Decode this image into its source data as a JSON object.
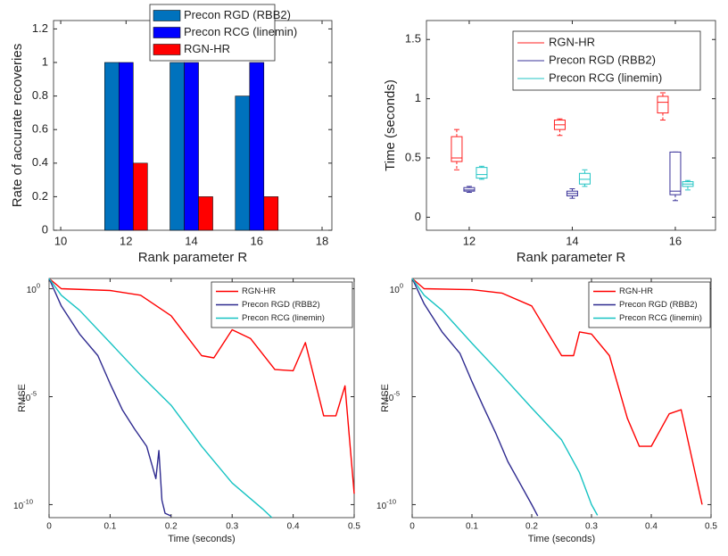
{
  "chart_data": [
    {
      "type": "bar",
      "xlabel": "Rank parameter R",
      "ylabel": "Rate of accurate recoveries",
      "x": [
        12,
        14,
        16
      ],
      "xlim": [
        9.78,
        18.3
      ],
      "xticks": [
        10,
        12,
        14,
        16,
        18
      ],
      "ylim": [
        0,
        1.25
      ],
      "yticks": [
        0,
        0.2,
        0.4,
        0.6,
        0.8,
        1,
        1.2
      ],
      "legend": "top",
      "series": [
        {
          "name": "Precon RGD (RBB2)",
          "color": "#0072bd",
          "values": [
            1,
            1,
            0.8
          ]
        },
        {
          "name": "Precon RCG (linemin)",
          "color": "#0000ff",
          "values": [
            1,
            1,
            1
          ]
        },
        {
          "name": "RGN-HR",
          "color": "#ff0000",
          "values": [
            0.4,
            0.2,
            0.2
          ]
        }
      ]
    },
    {
      "type": "box",
      "xlabel": "Rank parameter R",
      "ylabel": "Time (seconds)",
      "x": [
        12,
        14,
        16
      ],
      "xlim": [
        11.17,
        16.78
      ],
      "xticks": [
        12,
        14,
        16
      ],
      "ylim": [
        -0.11,
        1.66
      ],
      "yticks": [
        0,
        0.5,
        1,
        1.5
      ],
      "legend": "top right",
      "series": [
        {
          "name": "RGN-HR",
          "color": "#ff2020",
          "min": [
            0.4,
            0.69,
            0.82
          ],
          "q1": [
            0.47,
            0.74,
            0.88
          ],
          "median": [
            0.5,
            0.78,
            0.97
          ],
          "q3": [
            0.68,
            0.82,
            1.02
          ],
          "max": [
            0.74,
            0.83,
            1.05
          ]
        },
        {
          "name": "Precon RGD (RBB2)",
          "color": "#3a3399",
          "min": [
            0.21,
            0.16,
            0.14
          ],
          "q1": [
            0.22,
            0.18,
            0.19
          ],
          "median": [
            0.23,
            0.2,
            0.22
          ],
          "q3": [
            0.25,
            0.22,
            0.55
          ],
          "max": [
            0.26,
            0.24,
            0.55
          ]
        },
        {
          "name": "Precon RCG (linemin)",
          "color": "#22c4c4",
          "min": [
            0.32,
            0.26,
            0.23
          ],
          "q1": [
            0.33,
            0.28,
            0.26
          ],
          "median": [
            0.36,
            0.32,
            0.28
          ],
          "q3": [
            0.42,
            0.37,
            0.3
          ],
          "max": [
            0.43,
            0.4,
            0.31
          ]
        }
      ]
    },
    {
      "type": "line",
      "xlabel": "Time (seconds)",
      "ylabel": "RMSE",
      "log_y": true,
      "xlim": [
        0,
        0.5
      ],
      "xticks": [
        0,
        0.1,
        0.2,
        0.3,
        0.4,
        0.5
      ],
      "ylim": [
        3,
        2.5e-11
      ],
      "yticks": [
        {
          "value": 1,
          "label": "10",
          "exponent": "0"
        },
        {
          "value": 1e-05,
          "label": "10",
          "exponent": "-5"
        },
        {
          "value": 1e-10,
          "label": "10",
          "exponent": "-10"
        }
      ],
      "legend": "top right",
      "series": [
        {
          "name": "RGN-HR",
          "color": "#ff0000",
          "x": [
            0,
            0.02,
            0.1,
            0.15,
            0.2,
            0.25,
            0.27,
            0.3,
            0.33,
            0.37,
            0.4,
            0.42,
            0.45,
            0.47,
            0.485,
            0.5
          ],
          "values": [
            3,
            1,
            0.83,
            0.5,
            0.056,
            0.0008,
            0.00063,
            0.0126,
            0.005,
            0.00018,
            0.00016,
            0.0032,
            1.3e-06,
            1.3e-06,
            3.2e-05,
            3.2e-10
          ]
        },
        {
          "name": "Precon RGD (RBB2)",
          "color": "#2e2a8f",
          "x": [
            0,
            0.02,
            0.05,
            0.08,
            0.1,
            0.12,
            0.14,
            0.16,
            0.175,
            0.18,
            0.185,
            0.19,
            0.2
          ],
          "values": [
            3,
            0.16,
            0.008,
            0.0008,
            4e-05,
            2.5e-06,
            3.2e-07,
            5e-08,
            1.6e-09,
            3.2e-08,
            1.6e-10,
            4e-11,
            3e-11
          ]
        },
        {
          "name": "Precon RCG (linemin)",
          "color": "#17c3c3",
          "x": [
            0,
            0.02,
            0.05,
            0.1,
            0.15,
            0.2,
            0.25,
            0.3,
            0.35,
            0.365
          ],
          "values": [
            3,
            0.5,
            0.1,
            0.0032,
            0.0001,
            4e-06,
            5e-08,
            1e-09,
            6.3e-11,
            2.5e-11
          ]
        }
      ]
    },
    {
      "type": "line",
      "xlabel": "Time (seconds)",
      "ylabel": "RMSE",
      "log_y": true,
      "xlim": [
        0,
        0.5
      ],
      "xticks": [
        0,
        0.1,
        0.2,
        0.3,
        0.4,
        0.5
      ],
      "ylim": [
        3,
        2.5e-11
      ],
      "yticks": [
        {
          "value": 1,
          "label": "10",
          "exponent": "0"
        },
        {
          "value": 1e-05,
          "label": "10",
          "exponent": "-5"
        },
        {
          "value": 1e-10,
          "label": "10",
          "exponent": "-10"
        }
      ],
      "legend": "top right",
      "series": [
        {
          "name": "RGN-HR",
          "color": "#ff0000",
          "x": [
            0,
            0.02,
            0.1,
            0.15,
            0.2,
            0.25,
            0.27,
            0.28,
            0.3,
            0.33,
            0.36,
            0.38,
            0.4,
            0.43,
            0.45,
            0.485
          ],
          "values": [
            3,
            1,
            0.9,
            0.63,
            0.16,
            0.0008,
            0.0008,
            0.01,
            0.008,
            0.0008,
            1e-06,
            5e-08,
            5e-08,
            1.6e-06,
            2.5e-06,
            1e-10
          ]
        },
        {
          "name": "Precon RGD (RBB2)",
          "color": "#2e2a8f",
          "x": [
            0,
            0.02,
            0.05,
            0.08,
            0.1,
            0.12,
            0.14,
            0.16,
            0.18,
            0.2,
            0.21
          ],
          "values": [
            3,
            0.2,
            0.01,
            0.001,
            5e-05,
            3e-06,
            2e-07,
            1e-08,
            1e-09,
            1e-10,
            3e-11
          ]
        },
        {
          "name": "Precon RCG (linemin)",
          "color": "#17c3c3",
          "x": [
            0,
            0.02,
            0.05,
            0.1,
            0.15,
            0.2,
            0.25,
            0.28,
            0.3,
            0.31
          ],
          "values": [
            3,
            0.5,
            0.1,
            0.003,
            0.0001,
            3e-06,
            1e-07,
            3e-09,
            1e-10,
            3.2e-11
          ]
        }
      ]
    }
  ]
}
